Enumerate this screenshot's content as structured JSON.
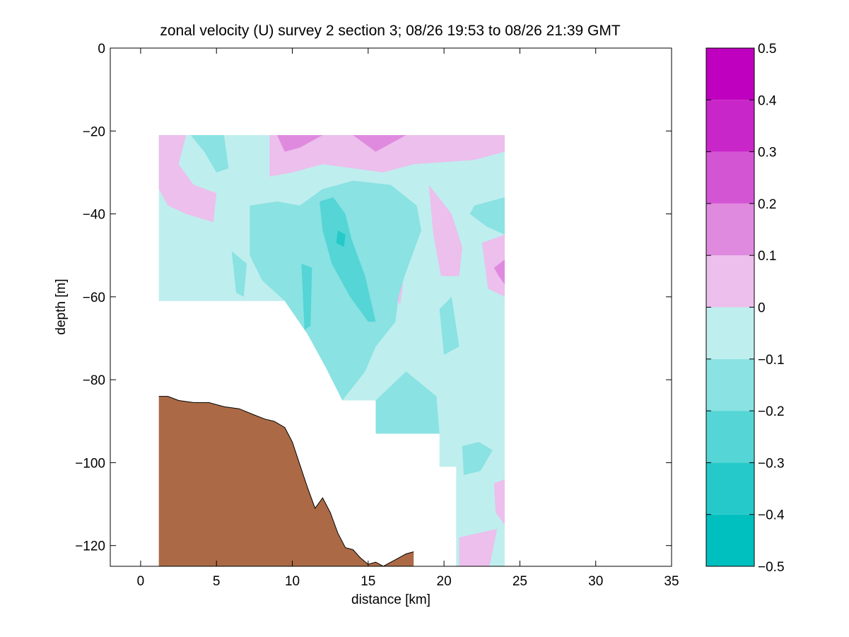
{
  "chart_data": {
    "type": "heatmap",
    "title": "zonal velocity (U) survey 2 section 3; 08/26 19:53 to 08/26 21:39 GMT",
    "xlabel": "distance [km]",
    "ylabel": "depth [m]",
    "xlim": [
      -2,
      35
    ],
    "ylim": [
      -125,
      0
    ],
    "xticks": [
      "0",
      "5",
      "10",
      "15",
      "20",
      "25",
      "30",
      "35"
    ],
    "yticks": [
      "0",
      "−20",
      "−40",
      "−60",
      "−80",
      "−100",
      "−120"
    ],
    "grid": false,
    "colorbar": {
      "min": -0.5,
      "max": 0.5,
      "ticks": [
        "0.5",
        "0.4",
        "0.3",
        "0.2",
        "0.1",
        "0",
        "−0.1",
        "−0.2",
        "−0.3",
        "−0.4",
        "−0.5"
      ],
      "levels": [
        {
          "from": -0.5,
          "to": -0.4,
          "color": "#00bfbf"
        },
        {
          "from": -0.4,
          "to": -0.3,
          "color": "#26c9c9"
        },
        {
          "from": -0.3,
          "to": -0.2,
          "color": "#55d5d5"
        },
        {
          "from": -0.2,
          "to": -0.1,
          "color": "#8ae2e2"
        },
        {
          "from": -0.1,
          "to": 0.0,
          "color": "#bfeeee"
        },
        {
          "from": 0.0,
          "to": 0.1,
          "color": "#ecbfec"
        },
        {
          "from": 0.1,
          "to": 0.2,
          "color": "#df8adf"
        },
        {
          "from": 0.2,
          "to": 0.3,
          "color": "#d455d4"
        },
        {
          "from": 0.3,
          "to": 0.4,
          "color": "#c926c9"
        },
        {
          "from": 0.4,
          "to": 0.5,
          "color": "#bf00bf"
        }
      ]
    },
    "data_region_outline": {
      "x": [
        1.2,
        24,
        24,
        20.8,
        20.8,
        19.7,
        19.7,
        15.5,
        15.5,
        13.3,
        13.3,
        12.2,
        12.2,
        11,
        11,
        9.5,
        9.5,
        1.2
      ],
      "y": [
        -21,
        -21,
        -125,
        -125,
        -101,
        -101,
        -93,
        -93,
        -85,
        -85,
        -77,
        -77,
        -69,
        -69,
        -61,
        -61,
        -61,
        -61
      ]
    },
    "contour_patches": [
      {
        "level": 0.05,
        "x": [
          1.2,
          3.0,
          2.5,
          3.5,
          5.0,
          4.8,
          3.0,
          1.8,
          1.2
        ],
        "y": [
          -21,
          -21,
          -28,
          -33,
          -35,
          -42,
          -40,
          -38,
          -34
        ]
      },
      {
        "level": 0.05,
        "x": [
          8.5,
          10.5,
          14,
          18,
          21,
          24,
          24,
          22,
          18,
          16,
          14,
          12,
          10,
          8.5
        ],
        "y": [
          -21,
          -21,
          -21,
          -21,
          -21,
          -21,
          -25,
          -27,
          -28,
          -30,
          -29,
          -28,
          -30,
          -31
        ]
      },
      {
        "level": 0.05,
        "x": [
          19.0,
          20.5,
          21.2,
          21.0,
          19.8,
          19.3
        ],
        "y": [
          -33,
          -40,
          -48,
          -55,
          -55,
          -45
        ]
      },
      {
        "level": 0.05,
        "x": [
          16.6,
          17.3,
          17.1,
          16.5
        ],
        "y": [
          -53,
          -57,
          -62,
          -58
        ]
      },
      {
        "level": 0.05,
        "x": [
          21.0,
          23.5,
          23.0,
          21.0
        ],
        "y": [
          -118,
          -116,
          -125,
          -125
        ]
      },
      {
        "level": 0.05,
        "x": [
          23.3,
          24.0,
          24.0,
          23.4
        ],
        "y": [
          -105,
          -104,
          -115,
          -112
        ]
      },
      {
        "level": 0.05,
        "x": [
          22.5,
          24.0,
          24.0,
          22.9
        ],
        "y": [
          -47,
          -45,
          -60,
          -58
        ]
      },
      {
        "level": 0.15,
        "x": [
          9.0,
          11.0,
          12.0,
          10.5,
          9.5
        ],
        "y": [
          -21,
          -21,
          -21,
          -24,
          -25
        ]
      },
      {
        "level": 0.15,
        "x": [
          14.0,
          16.0,
          17.5,
          15.5
        ],
        "y": [
          -21,
          -21,
          -21,
          -25
        ]
      },
      {
        "level": 0.15,
        "x": [
          23.3,
          24.0,
          24.0,
          23.6
        ],
        "y": [
          -53,
          -51,
          -57,
          -55
        ]
      },
      {
        "level": -0.15,
        "x": [
          3.3,
          4.5,
          5.5,
          5.8,
          5.0,
          4.2
        ],
        "y": [
          -21,
          -21,
          -21,
          -29,
          -30,
          -25
        ]
      },
      {
        "level": -0.15,
        "x": [
          7.2,
          9.0,
          10.5,
          12.0,
          14.0,
          16.5,
          18.2,
          18.5,
          17.4,
          17.0,
          16.8,
          15.5,
          14.8,
          13.3,
          13.3,
          12.2,
          12.2,
          11,
          11,
          9.5,
          8.0,
          7.2
        ],
        "y": [
          -38,
          -37,
          -38,
          -34,
          -32,
          -33,
          -38,
          -44,
          -55,
          -60,
          -66,
          -72,
          -78,
          -85,
          -85,
          -77,
          -77,
          -69,
          -69,
          -61,
          -56,
          -50
        ]
      },
      {
        "level": -0.15,
        "x": [
          15.5,
          17.5,
          19.5,
          19.7,
          15.5
        ],
        "y": [
          -85,
          -78,
          -84,
          -93,
          -93
        ]
      },
      {
        "level": -0.15,
        "x": [
          22.0,
          24.0,
          24.0,
          22.8,
          21.7
        ],
        "y": [
          -38,
          -36,
          -45,
          -43,
          -40
        ]
      },
      {
        "level": -0.15,
        "x": [
          19.7,
          20.5,
          21.0,
          20.0
        ],
        "y": [
          -63,
          -60,
          -72,
          -74
        ]
      },
      {
        "level": -0.15,
        "x": [
          21.2,
          22.3,
          23.2,
          22.4,
          21.3
        ],
        "y": [
          -96,
          -95,
          -97,
          -102,
          -103
        ]
      },
      {
        "level": -0.15,
        "x": [
          6.0,
          7.0,
          6.8,
          6.3
        ],
        "y": [
          -49,
          -52,
          -60,
          -59
        ]
      },
      {
        "level": -0.25,
        "x": [
          11.8,
          12.7,
          13.5,
          13.9,
          14.8,
          15.5,
          15.0,
          13.8,
          12.6,
          12.0
        ],
        "y": [
          -37,
          -36,
          -40,
          -46,
          -55,
          -66,
          -66,
          -60,
          -52,
          -44
        ]
      },
      {
        "level": -0.25,
        "x": [
          10.6,
          11.3,
          11.2,
          10.8
        ],
        "y": [
          -52,
          -53,
          -67,
          -68
        ]
      },
      {
        "level": -0.35,
        "x": [
          13.0,
          13.5,
          13.4,
          12.9
        ],
        "y": [
          -44,
          -45,
          -48,
          -47
        ]
      }
    ],
    "bathymetry": {
      "color": "#ab6a45",
      "x": [
        1.2,
        1.8,
        2.5,
        3.5,
        4.5,
        5.5,
        6.5,
        7.5,
        8.2,
        8.8,
        9.5,
        10.0,
        10.5,
        11.0,
        11.5,
        12.0,
        12.5,
        13.0,
        13.5,
        14.0,
        14.5,
        15.0,
        15.5,
        16.0,
        16.5,
        17.0,
        17.5,
        18.0
      ],
      "y": [
        -84,
        -84,
        -85,
        -85.5,
        -85.5,
        -86.5,
        -87,
        -88.5,
        -89.5,
        -90,
        -91.5,
        -95,
        -100.5,
        -106,
        -111,
        -108.5,
        -112,
        -117,
        -120.5,
        -121,
        -123,
        -124.5,
        -124,
        -125,
        -124,
        -123,
        -122,
        -121.5
      ]
    }
  }
}
